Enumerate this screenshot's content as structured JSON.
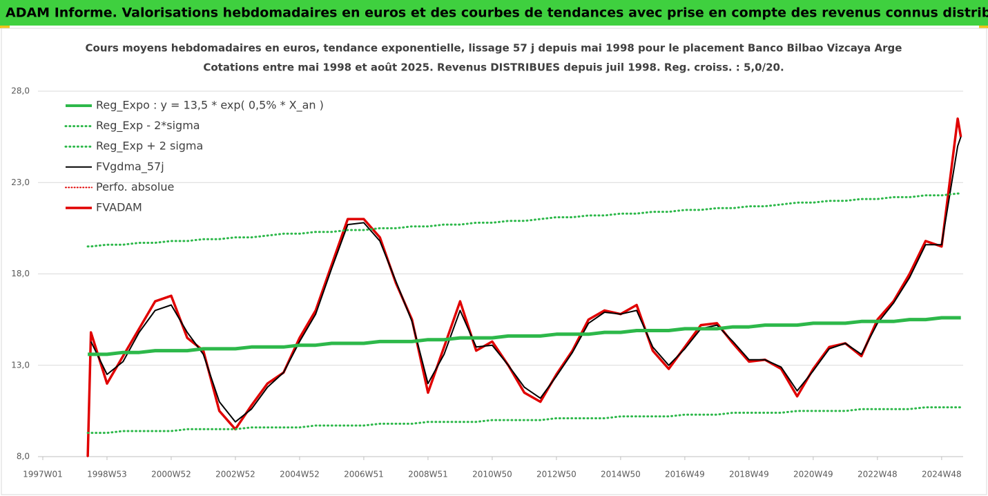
{
  "header": {
    "title": "ADAM Informe. Valorisations hebdomadaires en euros et des courbes de tendances avec prise en compte des revenus connus distribués"
  },
  "chart_data": {
    "type": "line",
    "title": "Cours moyens hebdomadaires en euros, tendance exponentielle, lissage 57 j depuis mai 1998 pour le placement Banco Bilbao Vizcaya Arge",
    "subtitle": "Cotations entre mai 1998 et août 2025. Revenus DISTRIBUES depuis juil 1998. Reg. croiss. : 5,0/20.",
    "x": [
      1998.4,
      1998.5,
      1999,
      1999.5,
      2000,
      2000.5,
      2001,
      2001.5,
      2002,
      2002.5,
      2003,
      2003.5,
      2004,
      2004.5,
      2005,
      2005.5,
      2006,
      2006.5,
      2007,
      2007.5,
      2008,
      2008.5,
      2009,
      2009.5,
      2010,
      2010.5,
      2011,
      2011.5,
      2012,
      2012.5,
      2013,
      2013.5,
      2014,
      2014.5,
      2015,
      2015.5,
      2016,
      2016.5,
      2017,
      2017.5,
      2018,
      2018.5,
      2019,
      2019.5,
      2020,
      2020.5,
      2021,
      2021.5,
      2022,
      2022.5,
      2023,
      2023.5,
      2024,
      2024.5,
      2025,
      2025.5,
      2025.6
    ],
    "xlim": [
      1996.85,
      2025.67
    ],
    "xticks": [
      {
        "value": 1997,
        "label": "1997W01"
      },
      {
        "value": 1999,
        "label": "1998W53"
      },
      {
        "value": 2001,
        "label": "2000W52"
      },
      {
        "value": 2003,
        "label": "2002W52"
      },
      {
        "value": 2005,
        "label": "2004W52"
      },
      {
        "value": 2007,
        "label": "2006W51"
      },
      {
        "value": 2009,
        "label": "2008W51"
      },
      {
        "value": 2011,
        "label": "2010W50"
      },
      {
        "value": 2013,
        "label": "2012W50"
      },
      {
        "value": 2015,
        "label": "2014W50"
      },
      {
        "value": 2017,
        "label": "2016W49"
      },
      {
        "value": 2019,
        "label": "2018W49"
      },
      {
        "value": 2021,
        "label": "2020W49"
      },
      {
        "value": 2023,
        "label": "2022W48"
      },
      {
        "value": 2025,
        "label": "2024W48"
      }
    ],
    "ylim": [
      8,
      28
    ],
    "yticks": [
      {
        "value": 8,
        "label": "8,0"
      },
      {
        "value": 13,
        "label": "13,0"
      },
      {
        "value": 18,
        "label": "18,0"
      },
      {
        "value": 23,
        "label": "23,0"
      },
      {
        "value": 28,
        "label": "28,0"
      }
    ],
    "grid": true,
    "legend": "top-left",
    "series": [
      {
        "name": "Reg_Expo : y = 13,5 * exp( 0,5% *  X_an )",
        "color": "#2db84a",
        "style": "solid",
        "width": 5,
        "values": [
          13.6,
          13.6,
          13.6,
          13.7,
          13.7,
          13.8,
          13.8,
          13.8,
          13.9,
          13.9,
          13.9,
          14.0,
          14.0,
          14.0,
          14.1,
          14.1,
          14.2,
          14.2,
          14.2,
          14.3,
          14.3,
          14.3,
          14.4,
          14.4,
          14.5,
          14.5,
          14.5,
          14.6,
          14.6,
          14.6,
          14.7,
          14.7,
          14.7,
          14.8,
          14.8,
          14.9,
          14.9,
          14.9,
          15.0,
          15.0,
          15.0,
          15.1,
          15.1,
          15.2,
          15.2,
          15.2,
          15.3,
          15.3,
          15.3,
          15.4,
          15.4,
          15.4,
          15.5,
          15.5,
          15.6,
          15.6,
          15.6
        ]
      },
      {
        "name": "Reg_Exp - 2*sigma",
        "color": "#2db84a",
        "style": "dotted",
        "width": 3,
        "values": [
          9.3,
          9.3,
          9.3,
          9.4,
          9.4,
          9.4,
          9.4,
          9.5,
          9.5,
          9.5,
          9.5,
          9.6,
          9.6,
          9.6,
          9.6,
          9.7,
          9.7,
          9.7,
          9.7,
          9.8,
          9.8,
          9.8,
          9.9,
          9.9,
          9.9,
          9.9,
          10.0,
          10.0,
          10.0,
          10.0,
          10.1,
          10.1,
          10.1,
          10.1,
          10.2,
          10.2,
          10.2,
          10.2,
          10.3,
          10.3,
          10.3,
          10.4,
          10.4,
          10.4,
          10.4,
          10.5,
          10.5,
          10.5,
          10.5,
          10.6,
          10.6,
          10.6,
          10.6,
          10.7,
          10.7,
          10.7,
          10.7
        ]
      },
      {
        "name": "Reg_Exp + 2 sigma",
        "color": "#2db84a",
        "style": "dotted",
        "width": 3,
        "values": [
          19.5,
          19.5,
          19.6,
          19.6,
          19.7,
          19.7,
          19.8,
          19.8,
          19.9,
          19.9,
          20.0,
          20.0,
          20.1,
          20.2,
          20.2,
          20.3,
          20.3,
          20.4,
          20.4,
          20.5,
          20.5,
          20.6,
          20.6,
          20.7,
          20.7,
          20.8,
          20.8,
          20.9,
          20.9,
          21.0,
          21.1,
          21.1,
          21.2,
          21.2,
          21.3,
          21.3,
          21.4,
          21.4,
          21.5,
          21.5,
          21.6,
          21.6,
          21.7,
          21.7,
          21.8,
          21.9,
          21.9,
          22.0,
          22.0,
          22.1,
          22.1,
          22.2,
          22.2,
          22.3,
          22.3,
          22.4,
          22.4
        ]
      },
      {
        "name": "FVgdma_57j",
        "color": "#000000",
        "style": "solid",
        "width": 2,
        "values": [
          null,
          14.3,
          12.5,
          13.2,
          14.8,
          16.0,
          16.3,
          14.8,
          13.6,
          11.0,
          9.9,
          10.6,
          11.8,
          12.6,
          14.3,
          15.8,
          18.3,
          20.7,
          20.8,
          19.8,
          17.6,
          15.4,
          12.0,
          13.6,
          16.0,
          14.0,
          14.1,
          13.0,
          11.8,
          11.2,
          12.4,
          13.7,
          15.3,
          15.9,
          15.8,
          16.0,
          14.0,
          13.0,
          13.9,
          15.0,
          15.2,
          14.3,
          13.3,
          13.3,
          12.9,
          11.6,
          12.7,
          13.9,
          14.2,
          13.6,
          15.3,
          16.4,
          17.8,
          19.6,
          19.6,
          25.0,
          25.5
        ]
      },
      {
        "name": "Perfo. absolue",
        "color": "#e00000",
        "style": "dotted",
        "width": 2,
        "values": [
          8.0,
          14.8,
          12.0,
          13.5,
          15.0,
          16.5,
          16.8,
          14.5,
          13.8,
          10.5,
          9.5,
          10.8,
          12.0,
          12.6,
          14.5,
          16.0,
          18.5,
          21.0,
          21.0,
          20.0,
          17.5,
          15.5,
          11.5,
          14.0,
          16.5,
          13.8,
          14.3,
          13.0,
          11.5,
          11.0,
          12.5,
          13.8,
          15.5,
          16.0,
          15.8,
          16.3,
          13.8,
          12.8,
          14.0,
          15.2,
          15.3,
          14.2,
          13.2,
          13.3,
          12.8,
          11.3,
          12.8,
          14.0,
          14.2,
          13.5,
          15.5,
          16.5,
          18.0,
          19.8,
          19.5,
          26.5,
          25.5
        ]
      },
      {
        "name": "FVADAM",
        "color": "#e00000",
        "style": "solid",
        "width": 3.5,
        "values": [
          8.0,
          14.8,
          12.0,
          13.5,
          15.0,
          16.5,
          16.8,
          14.5,
          13.8,
          10.5,
          9.5,
          10.8,
          12.0,
          12.6,
          14.5,
          16.0,
          18.5,
          21.0,
          21.0,
          20.0,
          17.5,
          15.5,
          11.5,
          14.0,
          16.5,
          13.8,
          14.3,
          13.0,
          11.5,
          11.0,
          12.5,
          13.8,
          15.5,
          16.0,
          15.8,
          16.3,
          13.8,
          12.8,
          14.0,
          15.2,
          15.3,
          14.2,
          13.2,
          13.3,
          12.8,
          11.3,
          12.8,
          14.0,
          14.2,
          13.5,
          15.5,
          16.5,
          18.0,
          19.8,
          19.5,
          26.5,
          25.5
        ]
      }
    ]
  }
}
